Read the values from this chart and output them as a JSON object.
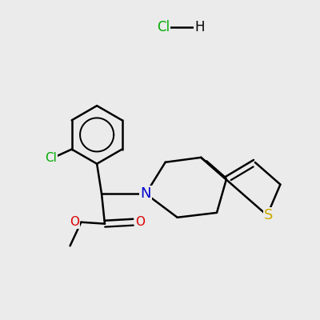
{
  "background_color": "#ebebeb",
  "bond_color": "#000000",
  "bond_width": 1.8,
  "atom_colors": {
    "N": "#0000cc",
    "O": "#dd0000",
    "S": "#ccaa00",
    "Cl_green": "#00aa00",
    "Cl_black": "#000000"
  },
  "font_size_atom": 11,
  "font_size_hcl": 12,
  "figsize": [
    4.0,
    4.0
  ],
  "dpi": 100
}
